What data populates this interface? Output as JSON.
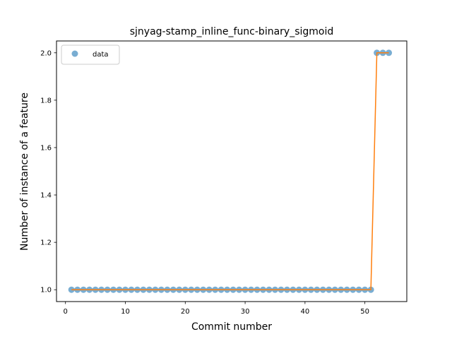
{
  "chart_data": {
    "type": "scatter",
    "title": "sjnyag-stamp_inline_func-binary_sigmoid",
    "xlabel": "Commit number",
    "ylabel": "Number of instance of a feature",
    "xlim": [
      -1.5,
      57
    ],
    "ylim": [
      0.95,
      2.05
    ],
    "xticks": [
      0,
      10,
      20,
      30,
      40,
      50
    ],
    "yticks": [
      1.0,
      1.2,
      1.4,
      1.6,
      1.8,
      2.0
    ],
    "xtick_labels": [
      "0",
      "10",
      "20",
      "30",
      "40",
      "50"
    ],
    "ytick_labels": [
      "1.0",
      "1.2",
      "1.4",
      "1.6",
      "1.8",
      "2.0"
    ],
    "legend": {
      "position": "top-left",
      "entries": [
        "data"
      ]
    },
    "grid": false,
    "series": [
      {
        "name": "data",
        "style": "markers",
        "color": "#1f77b4",
        "x": [
          1,
          2,
          3,
          4,
          5,
          6,
          7,
          8,
          9,
          10,
          11,
          12,
          13,
          14,
          15,
          16,
          17,
          18,
          19,
          20,
          21,
          22,
          23,
          24,
          25,
          26,
          27,
          28,
          29,
          30,
          31,
          32,
          33,
          34,
          35,
          36,
          37,
          38,
          39,
          40,
          41,
          42,
          43,
          44,
          45,
          46,
          47,
          48,
          49,
          50,
          51,
          52,
          53,
          54
        ],
        "y": [
          1,
          1,
          1,
          1,
          1,
          1,
          1,
          1,
          1,
          1,
          1,
          1,
          1,
          1,
          1,
          1,
          1,
          1,
          1,
          1,
          1,
          1,
          1,
          1,
          1,
          1,
          1,
          1,
          1,
          1,
          1,
          1,
          1,
          1,
          1,
          1,
          1,
          1,
          1,
          1,
          1,
          1,
          1,
          1,
          1,
          1,
          1,
          1,
          1,
          1,
          1,
          2,
          2,
          2
        ]
      },
      {
        "style": "line",
        "color": "#ff7f0e",
        "x": [
          1,
          51,
          52,
          54
        ],
        "y": [
          1,
          1,
          2,
          2
        ]
      }
    ]
  }
}
